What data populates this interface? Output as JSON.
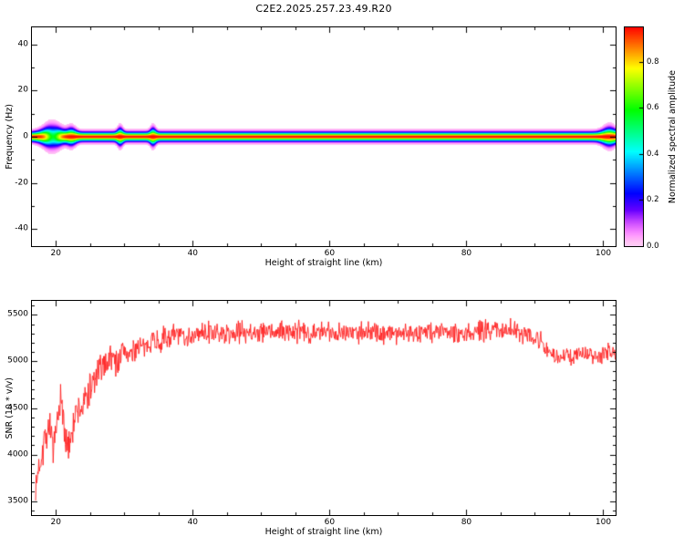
{
  "title": "C2E2.2025.257.23.49.R20",
  "colors": {
    "background": "#ffffff",
    "axis": "#000000",
    "snr_line": "#ff2020"
  },
  "chart_data": [
    {
      "type": "heatmap",
      "name": "spectrogram",
      "title": "C2E2.2025.257.23.49.R20",
      "xlabel": "Height of straight line (km)",
      "ylabel": "Frequency (Hz)",
      "xlim": [
        16.5,
        101.8
      ],
      "ylim": [
        -47.5,
        47.5
      ],
      "xticks": [
        20,
        40,
        60,
        80,
        100
      ],
      "xtick_minor_step": 5,
      "yticks": [
        -40,
        -20,
        0,
        20,
        40
      ],
      "ytick_minor_step": 10,
      "grid": false,
      "colorbar": {
        "label": "Normalized spectral amplitude",
        "ticks": [
          0,
          0.2,
          0.4,
          0.6,
          0.8
        ],
        "range": [
          0,
          0.95
        ],
        "colormap": "rainbow (violet low to red high)"
      },
      "band": {
        "description": "narrow spectral line centered at 0 Hz across all heights",
        "center_hz": 0,
        "base_sigma_hz": 1.15,
        "base_amplitude": 0.95,
        "sigma_blobs": [
          {
            "x": 19.5,
            "extra_sigma": 1.6,
            "width_km": 1.6
          },
          {
            "x": 22.3,
            "extra_sigma": 0.8,
            "width_km": 0.8
          },
          {
            "x": 29.4,
            "extra_sigma": 0.9,
            "width_km": 0.5
          },
          {
            "x": 34.2,
            "extra_sigma": 0.9,
            "width_km": 0.5
          },
          {
            "x": 100.9,
            "extra_sigma": 1.0,
            "width_km": 1.2
          }
        ],
        "amplitude_dips": [
          {
            "x": 19.6,
            "depth": 0.38,
            "width_km": 1.1
          }
        ]
      }
    },
    {
      "type": "line",
      "name": "snr",
      "xlabel": "Height of straight line (km)",
      "ylabel": "SNR (10 * v/v)",
      "xlim": [
        16.5,
        101.8
      ],
      "ylim": [
        3350,
        5650
      ],
      "xticks": [
        20,
        40,
        60,
        80,
        100
      ],
      "xtick_minor_step": 5,
      "yticks": [
        3500,
        4000,
        4500,
        5000,
        5500
      ],
      "ytick_minor_step": 100,
      "grid": false,
      "line_color": "#ff2020",
      "noise_seed": 7,
      "envelope_note": "points are [height_km, mean_SNR, noise_half_range] read from the plot",
      "envelope": [
        [
          17.0,
          3550,
          150
        ],
        [
          17.4,
          3830,
          170
        ],
        [
          18.0,
          4060,
          220
        ],
        [
          18.6,
          4250,
          230
        ],
        [
          19.2,
          4320,
          230
        ],
        [
          19.7,
          3990,
          220
        ],
        [
          20.2,
          4310,
          230
        ],
        [
          20.7,
          4560,
          210
        ],
        [
          21.2,
          4360,
          230
        ],
        [
          21.7,
          3990,
          220
        ],
        [
          22.3,
          4290,
          230
        ],
        [
          23.0,
          4430,
          210
        ],
        [
          24.0,
          4530,
          200
        ],
        [
          25.0,
          4710,
          190
        ],
        [
          26.0,
          4840,
          180
        ],
        [
          27.0,
          4960,
          170
        ],
        [
          28.0,
          5070,
          160
        ],
        [
          29.0,
          4990,
          160
        ],
        [
          30.0,
          5130,
          150
        ],
        [
          31.0,
          5060,
          150
        ],
        [
          32.0,
          5190,
          140
        ],
        [
          33.0,
          5110,
          140
        ],
        [
          34.0,
          5270,
          130
        ],
        [
          35.0,
          5190,
          130
        ],
        [
          36.0,
          5250,
          130
        ],
        [
          38.0,
          5290,
          125
        ],
        [
          40.0,
          5270,
          120
        ],
        [
          42.0,
          5310,
          120
        ],
        [
          45.0,
          5290,
          120
        ],
        [
          48.0,
          5330,
          120
        ],
        [
          50.0,
          5310,
          120
        ],
        [
          55.0,
          5320,
          120
        ],
        [
          60.0,
          5310,
          120
        ],
        [
          65.0,
          5320,
          120
        ],
        [
          70.0,
          5310,
          120
        ],
        [
          75.0,
          5320,
          120
        ],
        [
          80.0,
          5310,
          120
        ],
        [
          84.0,
          5340,
          120
        ],
        [
          87.0,
          5350,
          120
        ],
        [
          89.0,
          5310,
          120
        ],
        [
          91.0,
          5210,
          110
        ],
        [
          92.5,
          5070,
          95
        ],
        [
          93.5,
          5030,
          90
        ],
        [
          94.5,
          5070,
          90
        ],
        [
          95.5,
          5020,
          90
        ],
        [
          96.5,
          5110,
          90
        ],
        [
          98.0,
          5070,
          90
        ],
        [
          99.5,
          5050,
          90
        ],
        [
          101.0,
          5110,
          90
        ],
        [
          101.8,
          5090,
          90
        ]
      ]
    }
  ]
}
